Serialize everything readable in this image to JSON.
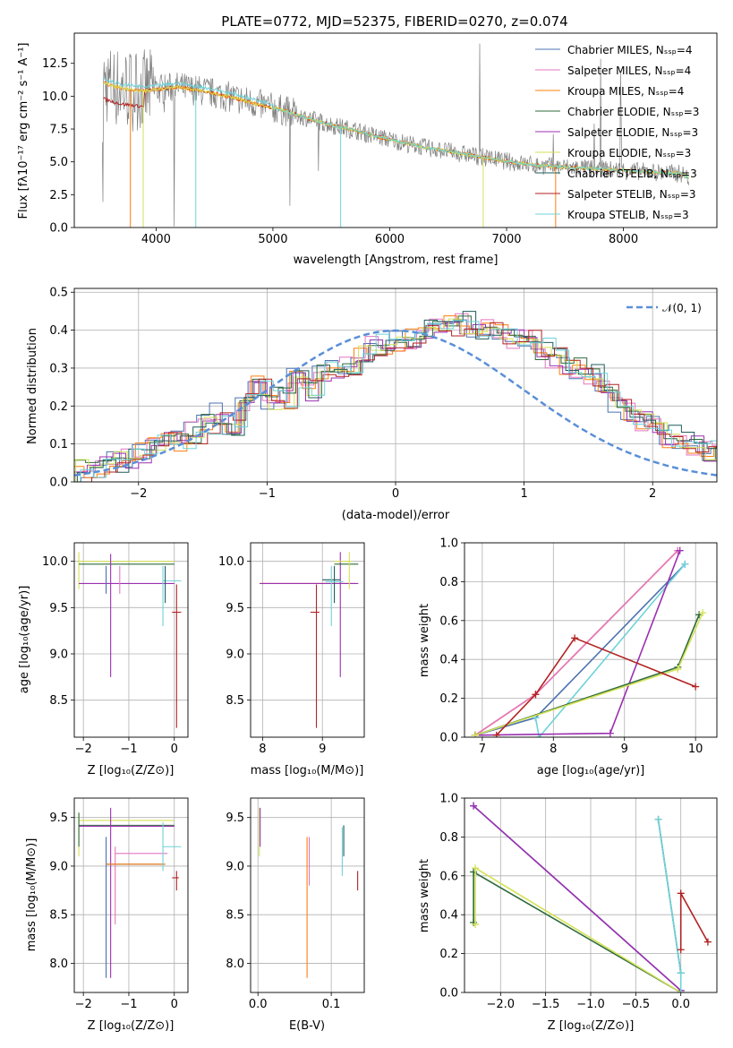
{
  "figure": {
    "title": "PLATE=0772, MJD=52375, FIBERID=0270, z=0.074",
    "colors": {
      "chabrier_miles": "#4c72b0",
      "salpeter_miles": "#e377c2",
      "kroupa_miles": "#ff7f0e",
      "chabrier_elodie": "#2e6b3a",
      "salpeter_elodie": "#9b30b0",
      "kroupa_elodie": "#d4e157",
      "chabrier_stelib": "#1f5c5c",
      "salpeter_stelib": "#b22222",
      "kroupa_stelib": "#6fd3d8",
      "data": "#808080",
      "normal": "#5a8fd8"
    }
  },
  "chart_data": [
    {
      "id": "spectrum",
      "type": "line",
      "xlabel": "wavelength [Angstrom, rest frame]",
      "ylabel": "Flux [fλ10⁻¹⁷ erg cm⁻² s⁻¹ A⁻¹]",
      "xlim": [
        3300,
        8800
      ],
      "ylim": [
        0,
        14.8
      ],
      "xticks": [
        "4000",
        "5000",
        "6000",
        "7000",
        "8000"
      ],
      "yticks": [
        "0.0",
        "2.5",
        "5.0",
        "7.5",
        "10.0",
        "12.5"
      ],
      "legend_position": "top-right",
      "legend": [
        "Chabrier MILES, Nₛₛₚ=4",
        "Salpeter MILES, Nₛₛₚ=4",
        "Kroupa MILES, Nₛₛₚ=4",
        "Chabrier ELODIE, Nₛₛₚ=3",
        "Salpeter ELODIE, Nₛₛₚ=3",
        "Kroupa ELODIE, Nₛₛₚ=3",
        "Chabrier STELIB, Nₛₛₚ=3",
        "Salpeter STELIB, Nₛₛₚ=3",
        "Kroupa STELIB, Nₛₛₚ=3"
      ],
      "model_continuum": [
        [
          3550,
          11.0
        ],
        [
          3700,
          10.6
        ],
        [
          3900,
          10.4
        ],
        [
          4000,
          10.5
        ],
        [
          4100,
          10.6
        ],
        [
          4200,
          10.7
        ],
        [
          4300,
          10.5
        ],
        [
          4400,
          10.4
        ],
        [
          4500,
          10.2
        ],
        [
          4700,
          9.8
        ],
        [
          4900,
          9.3
        ],
        [
          5100,
          8.9
        ],
        [
          5300,
          8.3
        ],
        [
          5500,
          7.8
        ],
        [
          5700,
          7.4
        ],
        [
          5900,
          6.9
        ],
        [
          6100,
          6.5
        ],
        [
          6300,
          6.1
        ],
        [
          6500,
          5.8
        ],
        [
          6700,
          5.5
        ],
        [
          6900,
          5.2
        ],
        [
          7100,
          4.9
        ],
        [
          7300,
          4.7
        ],
        [
          7500,
          4.6
        ],
        [
          7700,
          4.5
        ],
        [
          7900,
          4.4
        ],
        [
          8100,
          4.3
        ],
        [
          8300,
          4.2
        ],
        [
          8500,
          4.1
        ],
        [
          8550,
          3.8
        ]
      ]
    },
    {
      "id": "residuals",
      "type": "histogram",
      "xlabel": "(data-model)/error",
      "ylabel": "Normed distribution",
      "xlim": [
        -2.5,
        2.5
      ],
      "ylim": [
        0,
        0.51
      ],
      "xticks": [
        "−2",
        "−1",
        "0",
        "1",
        "2"
      ],
      "yticks": [
        "0.0",
        "0.1",
        "0.2",
        "0.3",
        "0.4",
        "0.5"
      ],
      "legend": [
        "𝒩(0, 1)"
      ],
      "legend_position": "top-right",
      "bin_width": 0.1,
      "bin_start": -2.5,
      "reference_heights": [
        0.03,
        0.04,
        0.05,
        0.05,
        0.06,
        0.08,
        0.1,
        0.11,
        0.11,
        0.13,
        0.15,
        0.18,
        0.15,
        0.21,
        0.25,
        0.22,
        0.22,
        0.27,
        0.24,
        0.29,
        0.3,
        0.3,
        0.34,
        0.36,
        0.36,
        0.37,
        0.38,
        0.4,
        0.4,
        0.41,
        0.42,
        0.4,
        0.41,
        0.39,
        0.38,
        0.38,
        0.35,
        0.33,
        0.3,
        0.3,
        0.28,
        0.24,
        0.2,
        0.18,
        0.16,
        0.15,
        0.12,
        0.11,
        0.1,
        0.08,
        0.08,
        0.07,
        0.07,
        0.06,
        0.05,
        0.04,
        0.03,
        0.03,
        0.03,
        0.02
      ]
    },
    {
      "id": "age_vs_Z",
      "type": "errorbar",
      "xlabel": "Z [log₁₀(Z/Z⊙)]",
      "ylabel": "age  [log₁₀(age/yr)]",
      "xlim": [
        -2.2,
        0.3
      ],
      "ylim": [
        8.1,
        10.2
      ],
      "xticks": [
        "−2",
        "−1",
        "0"
      ],
      "yticks": [
        "8.5",
        "9.0",
        "9.5",
        "10.0"
      ]
    },
    {
      "id": "age_vs_mass",
      "type": "errorbar",
      "xlabel": "mass [log₁₀(M/M⊙)]",
      "ylabel": "",
      "xlim": [
        7.8,
        9.7
      ],
      "ylim": [
        8.1,
        10.2
      ],
      "xticks": [
        "8",
        "9"
      ],
      "yticks": [
        "8.5",
        "9.0",
        "9.5",
        "10.0"
      ]
    },
    {
      "id": "massweight_vs_age",
      "type": "line",
      "xlabel": "age  [log₁₀(age/yr)]",
      "ylabel": "mass weight",
      "xlim": [
        6.75,
        10.3
      ],
      "ylim": [
        0,
        1
      ],
      "xticks": [
        "7",
        "8",
        "9",
        "10"
      ],
      "yticks": [
        "0.0",
        "0.2",
        "0.4",
        "0.6",
        "0.8",
        "1.0"
      ],
      "series": [
        {
          "color_key": "kroupa_miles",
          "x": [
            6.9,
            7.75,
            9.75
          ],
          "y": [
            0.01,
            0.22,
            0.96
          ]
        },
        {
          "color_key": "salpeter_miles",
          "x": [
            6.9,
            7.75,
            9.75
          ],
          "y": [
            0.01,
            0.22,
            0.96
          ]
        },
        {
          "color_key": "chabrier_miles",
          "x": [
            6.9,
            7.75,
            9.85
          ],
          "y": [
            0.01,
            0.1,
            0.89
          ]
        },
        {
          "color_key": "kroupa_stelib",
          "x": [
            7.75,
            7.8,
            9.85
          ],
          "y": [
            0.1,
            0.0,
            0.89
          ]
        },
        {
          "color_key": "salpeter_elodie",
          "x": [
            6.9,
            8.8,
            9.78
          ],
          "y": [
            0.01,
            0.02,
            0.96
          ]
        },
        {
          "color_key": "chabrier_elodie",
          "x": [
            6.9,
            9.75,
            10.05
          ],
          "y": [
            0.01,
            0.36,
            0.63
          ]
        },
        {
          "color_key": "kroupa_elodie",
          "x": [
            6.9,
            9.75,
            10.1
          ],
          "y": [
            0.01,
            0.35,
            0.64
          ]
        },
        {
          "color_key": "salpeter_stelib",
          "x": [
            7.2,
            7.75,
            8.3,
            10.0
          ],
          "y": [
            0.01,
            0.22,
            0.51,
            0.26
          ]
        }
      ]
    },
    {
      "id": "mass_vs_Z",
      "type": "errorbar",
      "xlabel": "Z [log₁₀(Z/Z⊙)]",
      "ylabel": "mass [log₁₀(M/M⊙)]",
      "xlim": [
        -2.2,
        0.3
      ],
      "ylim": [
        7.7,
        9.7
      ],
      "xticks": [
        "−2",
        "−1",
        "0"
      ],
      "yticks": [
        "8.0",
        "8.5",
        "9.0",
        "9.5"
      ]
    },
    {
      "id": "mass_vs_EBV",
      "type": "errorbar",
      "xlabel": "E(B-V)",
      "ylabel": "",
      "xlim": [
        -0.01,
        0.145
      ],
      "ylim": [
        7.7,
        9.7
      ],
      "xticks": [
        "0.0",
        "0.1"
      ],
      "yticks": [
        "8.0",
        "8.5",
        "9.0",
        "9.5"
      ]
    },
    {
      "id": "massweight_vs_Z",
      "type": "line",
      "xlabel": "Z [log₁₀(Z/Z⊙)]",
      "ylabel": "mass weight",
      "xlim": [
        -2.4,
        0.4
      ],
      "ylim": [
        0,
        1
      ],
      "xticks": [
        "−2.0",
        "−1.5",
        "−1.0",
        "−0.5",
        "0.0"
      ],
      "yticks": [
        "0.0",
        "0.2",
        "0.4",
        "0.6",
        "0.8",
        "1.0"
      ],
      "series": [
        {
          "color_key": "chabrier_miles",
          "x": [
            -2.3,
            0.0
          ],
          "y": [
            0.96,
            0.01
          ]
        },
        {
          "color_key": "salpeter_elodie",
          "x": [
            -2.3,
            0.0
          ],
          "y": [
            0.96,
            0.01
          ]
        },
        {
          "color_key": "chabrier_elodie",
          "x": [
            -2.3,
            -2.3,
            0.0
          ],
          "y": [
            0.36,
            0.62,
            0.0
          ]
        },
        {
          "color_key": "kroupa_elodie",
          "x": [
            -2.28,
            -2.28,
            0.0
          ],
          "y": [
            0.35,
            0.64,
            0.0
          ]
        },
        {
          "color_key": "chabrier_stelib",
          "x": [
            -0.25,
            0.0
          ],
          "y": [
            0.89,
            0.1
          ]
        },
        {
          "color_key": "kroupa_stelib",
          "x": [
            -0.25,
            0.0,
            0.0
          ],
          "y": [
            0.89,
            0.1,
            0.0
          ]
        },
        {
          "color_key": "salpeter_stelib",
          "x": [
            0.0,
            0.0,
            0.3
          ],
          "y": [
            0.22,
            0.51,
            0.26
          ]
        }
      ]
    }
  ]
}
